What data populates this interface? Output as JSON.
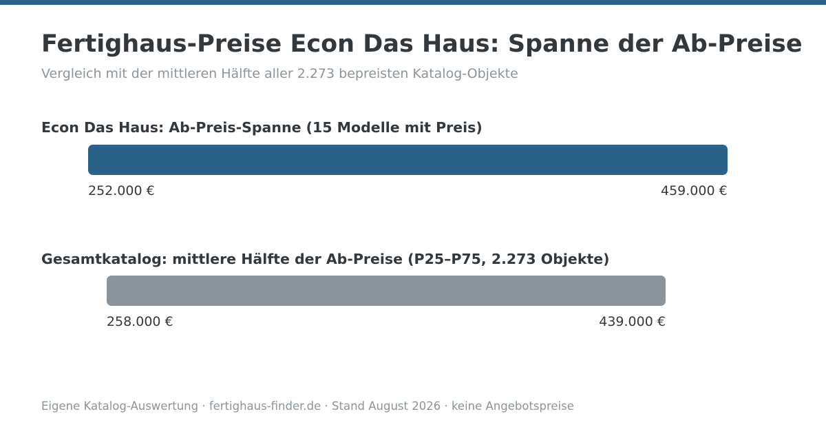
{
  "title": "Fertighaus-Preise Econ Das Haus: Spanne der Ab-Preise",
  "subtitle": "Vergleich mit der mittleren Hälfte aller 2.273 bepreisten Katalog-Objekte",
  "footer": "Eigene Katalog-Auswertung · fertighaus-finder.de · Stand August 2026 · keine Angebotspreise",
  "colors": {
    "accent": "#2a6189",
    "catalog": "#8b949b",
    "text": "#33383d",
    "muted": "#8b949b"
  },
  "chart_data": {
    "type": "range-bar",
    "unit": "€",
    "series": [
      {
        "name": "Econ Das Haus: Ab-Preis-Spanne (15 Modelle mit Preis)",
        "min": 252000,
        "max": 459000,
        "min_label": "252.000 €",
        "max_label": "459.000 €",
        "color": "#2a6189"
      },
      {
        "name": "Gesamtkatalog: mittlere Hälfte der Ab-Preise (P25–P75, 2.273 Objekte)",
        "min": 258000,
        "max": 439000,
        "min_label": "258.000 €",
        "max_label": "439.000 €",
        "color": "#8b949b"
      }
    ]
  }
}
